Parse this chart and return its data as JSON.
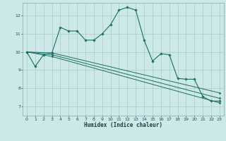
{
  "title": "",
  "xlabel": "Humidex (Indice chaleur)",
  "bg_color": "#cce8e8",
  "grid_color": "#aacccc",
  "line_color": "#1a7060",
  "xlim": [
    -0.5,
    23.5
  ],
  "ylim": [
    6.5,
    12.7
  ],
  "xticks": [
    0,
    1,
    2,
    3,
    4,
    5,
    6,
    7,
    8,
    9,
    10,
    11,
    12,
    13,
    14,
    15,
    16,
    17,
    18,
    19,
    20,
    21,
    22,
    23
  ],
  "yticks": [
    7,
    8,
    9,
    10,
    11,
    12
  ],
  "line1_x": [
    0,
    1,
    2,
    3,
    4,
    5,
    6,
    7,
    8,
    9,
    10,
    11,
    12,
    13,
    14,
    15,
    16,
    17,
    18,
    19,
    20,
    21,
    22,
    23
  ],
  "line1_y": [
    10.0,
    9.2,
    9.85,
    9.95,
    11.35,
    11.15,
    11.15,
    10.65,
    10.65,
    11.0,
    11.5,
    12.3,
    12.45,
    12.3,
    10.65,
    9.5,
    9.9,
    9.85,
    8.55,
    8.5,
    8.5,
    7.55,
    7.3,
    7.3
  ],
  "line2_x": [
    0,
    3,
    23
  ],
  "line2_y": [
    10.0,
    9.95,
    7.75
  ],
  "line3_x": [
    0,
    3,
    23
  ],
  "line3_y": [
    10.0,
    9.85,
    7.45
  ],
  "line4_x": [
    0,
    3,
    23
  ],
  "line4_y": [
    10.0,
    9.75,
    7.2
  ]
}
